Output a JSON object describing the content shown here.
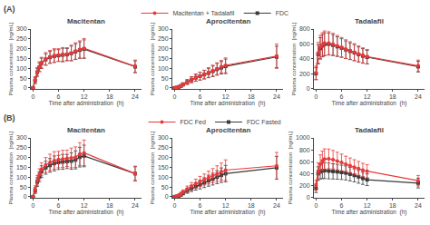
{
  "chart_data": [
    {
      "type": "line",
      "title": "Macitentan",
      "xlabel": "Time after administration  (h)",
      "ylabel": "Plasma concentration  [ng/mL]",
      "x": [
        0,
        0.5,
        1,
        1.5,
        2,
        3,
        4,
        5,
        6,
        7,
        8,
        9,
        10,
        11,
        12,
        24
      ],
      "series": [
        {
          "name": "FDC",
          "color": "#3a3a3a",
          "marker": "square",
          "line_style": "solid",
          "values": [
            0,
            38,
            80,
            106,
            126,
            145,
            156,
            162,
            165,
            168,
            170,
            176,
            185,
            193,
            198,
            108
          ],
          "errors": [
            0,
            15,
            20,
            22,
            26,
            29,
            30,
            32,
            30,
            34,
            31,
            37,
            40,
            42,
            47,
            30
          ]
        },
        {
          "name": "Macitentan + Tadalafil",
          "color": "#e8393a",
          "marker": "circle",
          "line_style": "solid",
          "values": [
            0,
            40,
            82,
            108,
            128,
            148,
            158,
            165,
            168,
            170,
            172,
            178,
            188,
            196,
            202,
            110
          ],
          "errors": [
            0,
            18,
            22,
            25,
            28,
            32,
            33,
            35,
            32,
            36,
            33,
            40,
            42,
            44,
            50,
            32
          ]
        }
      ],
      "xlim": [
        -0.5,
        25.5
      ],
      "xticks": [
        0,
        6,
        12,
        18,
        24
      ],
      "ylim": [
        -5,
        300
      ],
      "yticks": [
        0,
        50,
        100,
        150,
        200,
        250,
        300
      ],
      "grid": false,
      "legend": "top",
      "annotations": [
        "(A)"
      ]
    },
    {
      "type": "line",
      "title": "Aprocitentan",
      "xlabel": "Time after administration  (h)",
      "ylabel": "Plasma concentration  [ng/mL]",
      "x": [
        0,
        0.5,
        1,
        1.5,
        2,
        3,
        4,
        5,
        6,
        7,
        8,
        9,
        10,
        11,
        12,
        24
      ],
      "series": [
        {
          "name": "FDC",
          "color": "#3a3a3a",
          "marker": "square",
          "line_style": "solid",
          "values": [
            0,
            2,
            5,
            10,
            18,
            30,
            42,
            52,
            60,
            68,
            76,
            85,
            95,
            103,
            110,
            158
          ],
          "errors": [
            0,
            2,
            4,
            6,
            8,
            12,
            15,
            18,
            20,
            22,
            24,
            27,
            30,
            32,
            37,
            55
          ]
        },
        {
          "name": "Macitentan + Tadalafil",
          "color": "#e8393a",
          "marker": "circle",
          "line_style": "solid",
          "values": [
            0,
            2,
            5,
            10,
            18,
            30,
            42,
            52,
            60,
            68,
            78,
            88,
            98,
            108,
            115,
            162
          ],
          "errors": [
            0,
            2,
            4,
            6,
            8,
            12,
            15,
            18,
            20,
            22,
            25,
            28,
            30,
            32,
            38,
            62
          ]
        }
      ],
      "xlim": [
        -0.5,
        25.5
      ],
      "xticks": [
        0,
        6,
        12,
        18,
        24
      ],
      "ylim": [
        -5,
        300
      ],
      "yticks": [
        0,
        50,
        100,
        150,
        200,
        250,
        300
      ],
      "grid": false,
      "legend": "top"
    },
    {
      "type": "line",
      "title": "Tadalafil",
      "xlabel": "Time after administration  (h)",
      "ylabel": "Plasma concentration  [ng/mL]",
      "x": [
        0,
        0.5,
        1,
        1.5,
        2,
        3,
        4,
        5,
        6,
        7,
        8,
        9,
        10,
        11,
        12,
        24
      ],
      "series": [
        {
          "name": "FDC",
          "color": "#3a3a3a",
          "marker": "square",
          "line_style": "solid",
          "values": [
            200,
            460,
            540,
            575,
            595,
            598,
            584,
            564,
            545,
            522,
            502,
            482,
            458,
            438,
            422,
            295
          ],
          "errors": [
            80,
            130,
            145,
            150,
            155,
            148,
            140,
            132,
            125,
            118,
            112,
            108,
            102,
            98,
            92,
            72
          ]
        },
        {
          "name": "Macitentan + Tadalafil",
          "color": "#e8393a",
          "marker": "circle",
          "line_style": "solid",
          "values": [
            210,
            480,
            560,
            590,
            610,
            610,
            595,
            575,
            555,
            530,
            510,
            490,
            465,
            445,
            430,
            305
          ],
          "errors": [
            90,
            140,
            155,
            160,
            165,
            155,
            148,
            140,
            132,
            126,
            120,
            114,
            108,
            102,
            96,
            78
          ]
        }
      ],
      "xlim": [
        -0.5,
        25.5
      ],
      "xticks": [
        0,
        6,
        12,
        18,
        24
      ],
      "ylim": [
        -5,
        800
      ],
      "yticks": [
        0,
        200,
        400,
        600,
        800
      ],
      "grid": false,
      "legend": "top"
    },
    {
      "type": "line",
      "title": "Macitentan",
      "xlabel": "Time after administration  (h)",
      "ylabel": "Plasma concentration  [ng/mL]",
      "x": [
        0,
        0.5,
        1,
        1.5,
        2,
        3,
        4,
        5,
        6,
        7,
        8,
        9,
        10,
        11,
        12,
        24
      ],
      "series": [
        {
          "name": "FDC Fasted",
          "color": "#3a3a3a",
          "marker": "square",
          "line_style": "solid",
          "values": [
            0,
            32,
            75,
            102,
            128,
            148,
            160,
            170,
            175,
            178,
            180,
            182,
            188,
            202,
            208,
            118
          ],
          "errors": [
            0,
            15,
            22,
            25,
            30,
            33,
            35,
            38,
            36,
            38,
            36,
            42,
            46,
            50,
            55,
            35
          ]
        },
        {
          "name": "FDC Fed",
          "color": "#e8393a",
          "marker": "circle",
          "line_style": "solid",
          "values": [
            0,
            38,
            84,
            115,
            140,
            162,
            175,
            185,
            190,
            193,
            196,
            198,
            202,
            218,
            224,
            118
          ],
          "errors": [
            0,
            18,
            25,
            28,
            33,
            38,
            42,
            45,
            42,
            44,
            42,
            50,
            52,
            58,
            65,
            38
          ]
        }
      ],
      "xlim": [
        -0.5,
        25.5
      ],
      "xticks": [
        0,
        6,
        12,
        18,
        24
      ],
      "ylim": [
        -5,
        300
      ],
      "yticks": [
        0,
        50,
        100,
        150,
        200,
        250,
        300
      ],
      "grid": false,
      "legend": "top",
      "annotations": [
        "(B)"
      ]
    },
    {
      "type": "line",
      "title": "Aprocitentan",
      "xlabel": "Time after administration  (h)",
      "ylabel": "Plasma concentration  [ng/mL]",
      "x": [
        0,
        0.5,
        1,
        1.5,
        2,
        3,
        4,
        5,
        6,
        7,
        8,
        9,
        10,
        11,
        12,
        24
      ],
      "series": [
        {
          "name": "FDC Fasted",
          "color": "#3a3a3a",
          "marker": "square",
          "line_style": "solid",
          "values": [
            0,
            2,
            5,
            10,
            18,
            30,
            42,
            52,
            62,
            72,
            82,
            90,
            100,
            110,
            118,
            148
          ],
          "errors": [
            0,
            2,
            4,
            6,
            8,
            12,
            15,
            18,
            22,
            25,
            28,
            30,
            33,
            37,
            42,
            58
          ]
        },
        {
          "name": "FDC Fed",
          "color": "#e8393a",
          "marker": "circle",
          "line_style": "solid",
          "values": [
            0,
            3,
            8,
            15,
            25,
            40,
            55,
            68,
            78,
            88,
            98,
            108,
            118,
            128,
            136,
            158
          ],
          "errors": [
            0,
            3,
            5,
            8,
            10,
            15,
            18,
            22,
            26,
            28,
            33,
            36,
            40,
            44,
            52,
            68
          ]
        }
      ],
      "xlim": [
        -0.5,
        25.5
      ],
      "xticks": [
        0,
        6,
        12,
        18,
        24
      ],
      "ylim": [
        -5,
        300
      ],
      "yticks": [
        0,
        50,
        100,
        150,
        200,
        250,
        300
      ],
      "grid": false,
      "legend": "top"
    },
    {
      "type": "line",
      "title": "Tadalafil",
      "xlabel": "Time after administration  (h)",
      "ylabel": "Plasma concentration  [ng/mL]",
      "x": [
        0,
        0.5,
        1,
        1.5,
        2,
        3,
        4,
        5,
        6,
        7,
        8,
        9,
        10,
        11,
        12,
        24
      ],
      "series": [
        {
          "name": "FDC Fasted",
          "color": "#3a3a3a",
          "marker": "square",
          "line_style": "solid",
          "values": [
            155,
            400,
            435,
            448,
            452,
            445,
            438,
            432,
            422,
            412,
            392,
            372,
            348,
            322,
            298,
            242
          ],
          "errors": [
            72,
            115,
            125,
            130,
            135,
            132,
            128,
            125,
            120,
            118,
            114,
            110,
            108,
            102,
            98,
            82
          ]
        },
        {
          "name": "FDC Fed",
          "color": "#e8393a",
          "marker": "circle",
          "line_style": "solid",
          "values": [
            205,
            445,
            560,
            615,
            645,
            648,
            635,
            612,
            588,
            560,
            535,
            510,
            485,
            460,
            442,
            282
          ],
          "errors": [
            82,
            138,
            155,
            165,
            172,
            165,
            155,
            148,
            140,
            134,
            128,
            124,
            120,
            114,
            110,
            88
          ]
        }
      ],
      "xlim": [
        -0.5,
        25.5
      ],
      "xticks": [
        0,
        6,
        12,
        18,
        24
      ],
      "ylim": [
        -5,
        1000
      ],
      "yticks": [
        0,
        200,
        400,
        600,
        800,
        1000
      ],
      "grid": false,
      "legend": "top"
    }
  ]
}
